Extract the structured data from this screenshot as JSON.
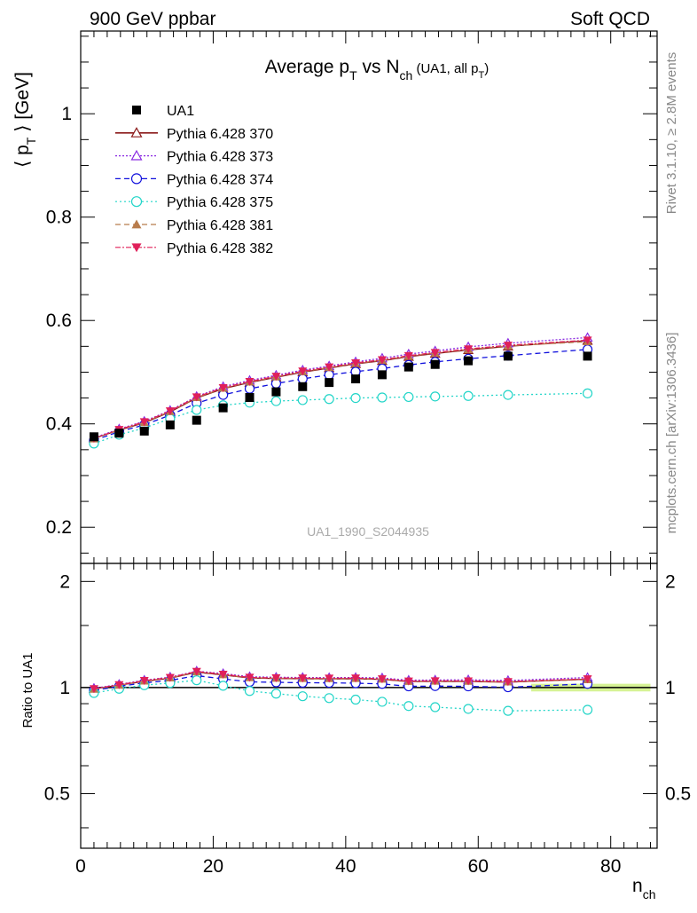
{
  "header": {
    "left": "900 GeV ppbar",
    "right": "Soft QCD",
    "side_rivet": "Rivet 3.1.10, ≥ 2.8M events",
    "side_mcplots": "mcplots.cern.ch [arXiv:1306.3436]",
    "watermark": "UA1_1990_S2044935"
  },
  "chart_data": {
    "type": "line",
    "title_main": "Average p",
    "title_sub1": "T",
    "title_mid": " vs N",
    "title_sub2": "ch",
    "title_paren": " (UA1, all p",
    "title_sub3": "T",
    "title_close": ")",
    "ylabel": "⟨ p",
    "ylabel_sub": "T",
    "ylabel_tail": " ⟩ [GeV]",
    "ratio_ylabel": "Ratio to UA1",
    "xlabel": "n",
    "xlabel_sub": "ch",
    "xlim": [
      0,
      87
    ],
    "ylim": [
      0.13,
      1.16
    ],
    "ratio_ylim": [
      0.35,
      2.25
    ],
    "x_ticks": [
      "0",
      "20",
      "40",
      "60",
      "80"
    ],
    "y_ticks": [
      "0.2",
      "0.4",
      "0.6",
      "0.8",
      "1"
    ],
    "ratio_ticks": [
      "0.5",
      "1",
      "2"
    ],
    "x": [
      2,
      5.8,
      9.6,
      13.5,
      17.5,
      21.5,
      25.5,
      29.5,
      33.5,
      37.5,
      41.5,
      45.5,
      49.5,
      53.5,
      58.5,
      64.5,
      76.5
    ],
    "data": {
      "name": "UA1",
      "color": "#000000",
      "values": [
        0.375,
        0.382,
        0.386,
        0.398,
        0.407,
        0.431,
        0.451,
        0.462,
        0.472,
        0.48,
        0.487,
        0.495,
        0.51,
        0.515,
        0.522,
        0.531,
        0.531
      ]
    },
    "series": [
      {
        "name": "Pythia 6.428 370",
        "color": "#8b1a1a",
        "dash": "",
        "marker": "triangle-open",
        "legend_width": 1.6,
        "values": [
          0.372,
          0.388,
          0.402,
          0.423,
          0.45,
          0.468,
          0.48,
          0.49,
          0.5,
          0.508,
          0.516,
          0.522,
          0.53,
          0.536,
          0.543,
          0.55,
          0.561
        ]
      },
      {
        "name": "Pythia 6.428 373",
        "color": "#8a2be2",
        "dash": "2,2",
        "marker": "triangle-open",
        "legend_width": 1.2,
        "values": [
          0.373,
          0.39,
          0.405,
          0.426,
          0.453,
          0.472,
          0.484,
          0.494,
          0.504,
          0.512,
          0.52,
          0.527,
          0.535,
          0.541,
          0.549,
          0.556,
          0.567
        ]
      },
      {
        "name": "Pythia 6.428 374",
        "color": "#1010dd",
        "dash": "6,4",
        "marker": "circle-open",
        "legend_width": 1.2,
        "values": [
          0.368,
          0.385,
          0.398,
          0.417,
          0.44,
          0.456,
          0.468,
          0.478,
          0.487,
          0.495,
          0.501,
          0.507,
          0.514,
          0.52,
          0.526,
          0.532,
          0.544
        ]
      },
      {
        "name": "Pythia 6.428 375",
        "color": "#22d5c8",
        "dash": "2,3",
        "marker": "circle-open",
        "legend_width": 1.2,
        "values": [
          0.362,
          0.379,
          0.392,
          0.41,
          0.427,
          0.436,
          0.441,
          0.444,
          0.446,
          0.448,
          0.45,
          0.451,
          0.452,
          0.453,
          0.454,
          0.456,
          0.459
        ]
      },
      {
        "name": "Pythia 6.428 381",
        "color": "#b87c4c",
        "dash": "6,4",
        "marker": "triangle-filled",
        "legend_width": 1.2,
        "values": [
          0.371,
          0.388,
          0.403,
          0.424,
          0.451,
          0.469,
          0.481,
          0.491,
          0.501,
          0.509,
          0.517,
          0.523,
          0.531,
          0.537,
          0.544,
          0.551,
          0.559
        ]
      },
      {
        "name": "Pythia 6.428 382",
        "color": "#e0205a",
        "dash": "6,2,2,2",
        "marker": "triangle-down-filled",
        "legend_width": 1.2,
        "values": [
          0.372,
          0.389,
          0.404,
          0.425,
          0.452,
          0.47,
          0.482,
          0.492,
          0.502,
          0.51,
          0.518,
          0.524,
          0.532,
          0.538,
          0.545,
          0.552,
          0.562
        ]
      }
    ]
  }
}
